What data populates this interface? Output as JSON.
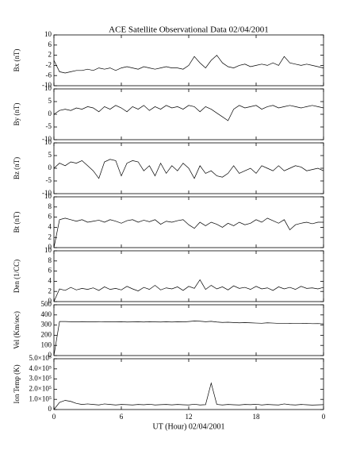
{
  "title": "ACE Satellite Observational Data   02/04/2001",
  "x_axis": {
    "xlabel": "UT (Hour)  02/04/2001",
    "xlim": [
      0,
      24
    ],
    "xticks": [
      0,
      6,
      12,
      18,
      {
        "value": 24,
        "label": "0"
      }
    ],
    "x": [
      0,
      0.5,
      1,
      1.5,
      2,
      2.5,
      3,
      3.5,
      4,
      4.5,
      5,
      5.5,
      6,
      6.5,
      7,
      7.5,
      8,
      8.5,
      9,
      9.5,
      10,
      10.5,
      11,
      11.5,
      12,
      12.5,
      13,
      13.5,
      14,
      14.5,
      15,
      15.5,
      16,
      16.5,
      17,
      17.5,
      18,
      18.5,
      19,
      19.5,
      20,
      20.5,
      21,
      21.5,
      22,
      22.5,
      23,
      23.5,
      24
    ]
  },
  "chart_data": [
    {
      "type": "line",
      "ylabel": "Bx (nT)",
      "ylim": [
        -10,
        10
      ],
      "yticks": [
        10,
        6,
        2,
        -2,
        -6,
        -10
      ],
      "color": "#000000",
      "values": [
        0,
        -4.5,
        -5,
        -4.5,
        -4,
        -4,
        -3.5,
        -4,
        -3,
        -3.5,
        -3,
        -4,
        -3,
        -2.5,
        -3,
        -3.5,
        -2.5,
        -3,
        -3.5,
        -3,
        -2.5,
        -3,
        -3,
        -3.5,
        -2,
        1.5,
        -1,
        -3,
        0,
        2,
        -1,
        -2.5,
        -3,
        -2,
        -1.5,
        -2.5,
        -2,
        -1.5,
        -2,
        -1,
        -2,
        1.5,
        -1,
        -1.5,
        -2,
        -1.5,
        -2,
        -2.5,
        -3
      ]
    },
    {
      "type": "line",
      "ylabel": "By (nT)",
      "ylim": [
        -10,
        10
      ],
      "yticks": [
        10,
        5,
        0,
        -5,
        -10
      ],
      "color": "#000000",
      "values": [
        0,
        1.5,
        2,
        1.5,
        2.5,
        2,
        3,
        2.5,
        1,
        3,
        2,
        3.5,
        2.5,
        1,
        3,
        2,
        3.5,
        1.5,
        3,
        2,
        3.5,
        2.5,
        3,
        2,
        3.5,
        3,
        1,
        3,
        2,
        0.5,
        -1,
        -2.5,
        2,
        3.5,
        2.5,
        3,
        3.5,
        2,
        3,
        3.5,
        2.5,
        3,
        3.5,
        3,
        2.5,
        3,
        3.5,
        3,
        2.5
      ]
    },
    {
      "type": "line",
      "ylabel": "Bz (nT)",
      "ylim": [
        -10,
        10
      ],
      "yticks": [
        10,
        5,
        0,
        -5,
        -10
      ],
      "color": "#000000",
      "values": [
        0,
        2,
        1,
        2.5,
        2,
        3,
        1,
        -1,
        -4,
        2.5,
        3.5,
        3,
        -3,
        2,
        3,
        2.5,
        -1,
        1,
        -3,
        2,
        -2,
        1,
        -1,
        2,
        0,
        -4,
        1,
        -2,
        -1,
        -3,
        -3.5,
        -2,
        1,
        -2,
        -1,
        0,
        -2,
        1,
        0,
        -1,
        1,
        -1,
        0,
        1,
        0.5,
        -1,
        -0.5,
        0,
        -1
      ]
    },
    {
      "type": "line",
      "ylabel": "Bt (nT)",
      "ylim": [
        0,
        10
      ],
      "yticks": [
        10,
        8,
        6,
        4,
        2,
        0
      ],
      "color": "#000000",
      "values": [
        0,
        5.5,
        5.8,
        5.5,
        5.2,
        5.5,
        5,
        5.2,
        5.4,
        5,
        5.5,
        5.2,
        4.8,
        5.3,
        5.5,
        5,
        5.4,
        5.1,
        5.5,
        4.6,
        5.2,
        5,
        5.3,
        5.5,
        4.5,
        3.8,
        5,
        4.3,
        5,
        4.6,
        4,
        4.8,
        4.3,
        5,
        4.5,
        4.8,
        5.5,
        5,
        5.8,
        5.3,
        4.8,
        5.5,
        3.5,
        4.5,
        4.8,
        5,
        4.7,
        5,
        5
      ]
    },
    {
      "type": "line",
      "ylabel": "Den (1/CC)",
      "ylim": [
        0,
        10
      ],
      "yticks": [
        10,
        8,
        6,
        4,
        2,
        0
      ],
      "color": "#000000",
      "values": [
        0,
        2.5,
        2.2,
        2.8,
        2.3,
        2.6,
        2.4,
        2.7,
        2.2,
        2.9,
        2.4,
        2.6,
        2.3,
        3,
        2.5,
        2.1,
        2.8,
        2.4,
        3.2,
        2.3,
        2.7,
        2.5,
        2.9,
        2.2,
        3,
        2.6,
        4.3,
        2.4,
        3.2,
        2.5,
        2.9,
        2.3,
        3.1,
        2.6,
        2.8,
        2.4,
        3,
        2.5,
        2.7,
        2.2,
        2.9,
        2.5,
        2.8,
        2.4,
        3,
        2.6,
        2.7,
        2.5,
        2.8
      ]
    },
    {
      "type": "line",
      "ylabel": "Vel (Km/sec)",
      "ylim": [
        0,
        500
      ],
      "yticks": [
        500,
        400,
        300,
        200,
        100,
        0
      ],
      "color": "#000000",
      "values": [
        0,
        335,
        335,
        333,
        332,
        334,
        333,
        332,
        334,
        333,
        331,
        332,
        333,
        330,
        331,
        332,
        330,
        333,
        331,
        330,
        332,
        330,
        332,
        331,
        335,
        340,
        338,
        333,
        337,
        330,
        326,
        328,
        325,
        322,
        324,
        322,
        320,
        318,
        322,
        320,
        317,
        315,
        318,
        316,
        315,
        317,
        314,
        315,
        312
      ]
    },
    {
      "type": "line",
      "ylabel": "Ion Temp (K)",
      "ylim": [
        0,
        500000
      ],
      "yticks": [
        {
          "value": 500000,
          "label": "5.0×10⁵"
        },
        {
          "value": 400000,
          "label": "4.0×10⁵"
        },
        {
          "value": 300000,
          "label": "3.0×10⁵"
        },
        {
          "value": 200000,
          "label": "2.0×10⁵"
        },
        {
          "value": 100000,
          "label": "1.0×10⁵"
        },
        0
      ],
      "color": "#000000",
      "values": [
        0,
        70000,
        90000,
        80000,
        60000,
        50000,
        55000,
        50000,
        45000,
        55000,
        50000,
        45000,
        50000,
        48000,
        45000,
        50000,
        47000,
        52000,
        45000,
        48000,
        50000,
        46000,
        50000,
        47000,
        45000,
        52000,
        45000,
        48000,
        260000,
        50000,
        45000,
        50000,
        47000,
        45000,
        50000,
        48000,
        52000,
        45000,
        50000,
        47000,
        45000,
        55000,
        48000,
        45000,
        50000,
        47000,
        44000,
        46000,
        48000
      ]
    }
  ]
}
